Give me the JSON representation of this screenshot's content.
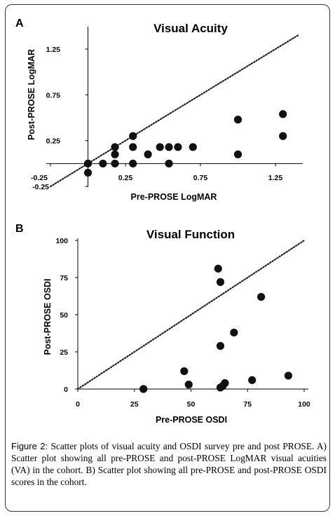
{
  "chart_data": [
    {
      "panel": "A",
      "type": "scatter",
      "title": "Visual Acuity",
      "xlabel": "Pre-PROSE LogMAR",
      "ylabel": "Post-PROSE LogMAR",
      "xlim": [
        -0.25,
        1.45
      ],
      "ylim": [
        -0.25,
        1.45
      ],
      "x_ticks": [
        "-0.25",
        "0.25",
        "0.75",
        "1.25"
      ],
      "y_ticks": [
        "-0.25",
        "0.25",
        "0.75",
        "1.25"
      ],
      "x_tick_values": [
        -0.25,
        0.25,
        0.75,
        1.25
      ],
      "y_tick_values": [
        -0.25,
        0.25,
        0.75,
        1.25
      ],
      "reference_line": "identity (dotted)",
      "grid": false,
      "points": [
        {
          "x": 0.0,
          "y": 0.0
        },
        {
          "x": 0.0,
          "y": -0.1
        },
        {
          "x": 0.1,
          "y": 0.0
        },
        {
          "x": 0.18,
          "y": 0.0
        },
        {
          "x": 0.18,
          "y": 0.1
        },
        {
          "x": 0.18,
          "y": 0.18
        },
        {
          "x": 0.3,
          "y": 0.0
        },
        {
          "x": 0.3,
          "y": 0.18
        },
        {
          "x": 0.3,
          "y": 0.3
        },
        {
          "x": 0.4,
          "y": 0.1
        },
        {
          "x": 0.48,
          "y": 0.18
        },
        {
          "x": 0.54,
          "y": 0.0
        },
        {
          "x": 0.54,
          "y": 0.18
        },
        {
          "x": 0.6,
          "y": 0.18
        },
        {
          "x": 0.7,
          "y": 0.18
        },
        {
          "x": 1.0,
          "y": 0.1
        },
        {
          "x": 1.0,
          "y": 0.48
        },
        {
          "x": 1.3,
          "y": 0.3
        },
        {
          "x": 1.3,
          "y": 0.54
        }
      ]
    },
    {
      "panel": "B",
      "type": "scatter",
      "title": "Visual Function",
      "xlabel": "Pre-PROSE OSDI",
      "ylabel": "Post-PROSE OSDI",
      "xlim": [
        0,
        100
      ],
      "ylim": [
        0,
        100
      ],
      "x_ticks": [
        "0",
        "25",
        "50",
        "75",
        "100"
      ],
      "y_ticks": [
        "0",
        "25",
        "50",
        "75",
        "100"
      ],
      "x_tick_values": [
        0,
        25,
        50,
        75,
        100
      ],
      "y_tick_values": [
        0,
        25,
        50,
        75,
        100
      ],
      "reference_line": "identity (dotted)",
      "grid": false,
      "points": [
        {
          "x": 29,
          "y": 0
        },
        {
          "x": 47,
          "y": 12
        },
        {
          "x": 49,
          "y": 3
        },
        {
          "x": 62,
          "y": 81
        },
        {
          "x": 63,
          "y": 72
        },
        {
          "x": 63,
          "y": 29
        },
        {
          "x": 63,
          "y": 1
        },
        {
          "x": 64,
          "y": 2
        },
        {
          "x": 65,
          "y": 4
        },
        {
          "x": 69,
          "y": 38
        },
        {
          "x": 77,
          "y": 6
        },
        {
          "x": 81,
          "y": 62
        },
        {
          "x": 93,
          "y": 9
        }
      ]
    }
  ],
  "caption": {
    "label": "Figure 2:",
    "text": "Scatter plots of visual acuity and OSDI survey pre and post PROSE. A) Scatter plot showing all pre-PROSE and post-PROSE LogMAR visual acuities (VA) in the cohort. B) Scatter plot showing all pre-PROSE and post-PROSE OSDI scores in the cohort."
  }
}
